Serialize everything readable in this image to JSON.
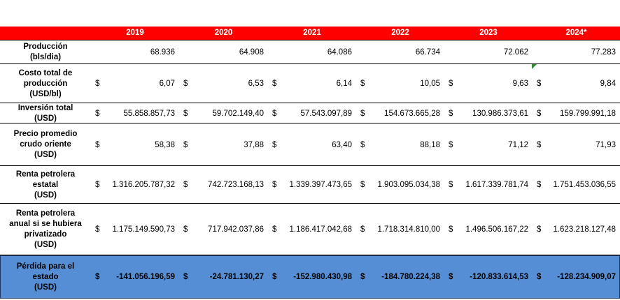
{
  "header": {
    "years": [
      "2019",
      "2020",
      "2021",
      "2022",
      "2023",
      "2024*"
    ]
  },
  "rows": [
    {
      "label": [
        "Producción",
        "(bls/dia)"
      ],
      "values": [
        "68.936",
        "64.908",
        "64.086",
        "66.734",
        "72.062",
        "77.283"
      ]
    },
    {
      "label": [
        "Costo total de",
        "producción",
        "(USD/bl)"
      ],
      "currency": "$",
      "values": [
        "6,07",
        "6,53",
        "6,14",
        "10,05",
        "9,63",
        "9,84"
      ]
    },
    {
      "label": [
        "Inversión total",
        "(USD)"
      ],
      "currency": "$",
      "values": [
        "55.858.857,73",
        "59.702.149,40",
        "57.543.097,89",
        "154.673.665,28",
        "130.986.373,61",
        "159.799.991,18"
      ]
    },
    {
      "label": [
        "Precio promedio",
        "crudo oriente",
        "(USD)"
      ],
      "currency": "$",
      "values": [
        "58,38",
        "37,88",
        "63,40",
        "88,18",
        "71,12",
        "71,93"
      ]
    },
    {
      "label": [
        "Renta petrolera",
        "estatal",
        "(USD)"
      ],
      "currency": "$",
      "values": [
        "1.316.205.787,32",
        "742.723.168,13",
        "1.339.397.473,65",
        "1.903.095.034,38",
        "1.617.339.781,74",
        "1.751.453.036,55"
      ]
    },
    {
      "label": [
        "Renta petrolera",
        "anual si se hubiera",
        "privatizado",
        "(USD)"
      ],
      "currency": "$",
      "values": [
        "1.175.149.590,73",
        "717.942.037,86",
        "1.186.417.042,68",
        "1.718.314.810,00",
        "1.496.506.167,22",
        "1.623.218.127,48"
      ]
    },
    {
      "label": [
        "Pérdida para el",
        "estado",
        "(USD)"
      ],
      "currency": "$",
      "values": [
        "-141.056.196,59",
        "-24.781.130,27",
        "-152.980.430,98",
        "-184.780.224,38",
        "-120.833.614,53",
        "-128.234.909,07"
      ]
    }
  ]
}
